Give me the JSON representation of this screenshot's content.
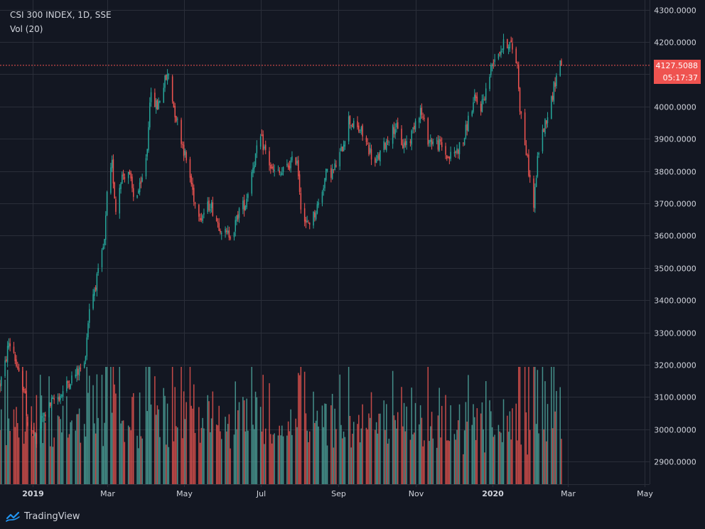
{
  "legend": {
    "title": "CSI 300 INDEX, 1D, SSE",
    "indicator": "Vol (20)"
  },
  "brand": {
    "name": "TradingView",
    "icon": "tradingview-logo-icon"
  },
  "price_line": {
    "price_label": "4127.5088",
    "countdown_label": "05:17:37",
    "value": 4127.5088
  },
  "colors": {
    "background": "#131722",
    "grid": "#2a2e39",
    "up": "#26a69a",
    "down": "#ef5350",
    "up_volume": "#4ea59b",
    "down_volume": "#e5534f",
    "text": "#d1d4dc",
    "price_line": "#ef5350"
  },
  "chart_data": {
    "type": "candlestick",
    "title": "CSI 300 INDEX, 1D, SSE",
    "ylim": [
      2830,
      4330
    ],
    "y_ticks": [
      "4300.0000",
      "4200.0000",
      "4100.0000",
      "4000.0000",
      "3900.0000",
      "3800.0000",
      "3700.0000",
      "3600.0000",
      "3500.0000",
      "3400.0000",
      "3300.0000",
      "3200.0000",
      "3100.0000",
      "3000.0000",
      "2900.0000"
    ],
    "y_tick_values": [
      4300,
      4200,
      4100,
      4000,
      3900,
      3800,
      3700,
      3600,
      3500,
      3400,
      3300,
      3200,
      3100,
      3000,
      2900
    ],
    "x_ticks": [
      "2019",
      "Mar",
      "May",
      "Jul",
      "Sep",
      "Nov",
      "2020",
      "Mar",
      "May"
    ],
    "x_tick_bold": [
      true,
      false,
      false,
      false,
      false,
      false,
      true,
      false,
      false
    ],
    "x_tick_dates": [
      "2019-01-01",
      "2019-03-01",
      "2019-05-01",
      "2019-07-01",
      "2019-09-01",
      "2019-11-01",
      "2020-01-01",
      "2020-03-01",
      "2020-05-01"
    ],
    "x_range": [
      "2018-12-06",
      "2020-05-05"
    ],
    "grid": true,
    "close_path": [
      [
        "2018-12-06",
        3140
      ],
      [
        "2018-12-10",
        3200
      ],
      [
        "2018-12-13",
        3270
      ],
      [
        "2018-12-17",
        3240
      ],
      [
        "2018-12-20",
        3175
      ],
      [
        "2018-12-25",
        3130
      ],
      [
        "2018-12-28",
        3020
      ],
      [
        "2019-01-02",
        2980
      ],
      [
        "2019-01-04",
        2950
      ],
      [
        "2019-01-08",
        3030
      ],
      [
        "2019-01-14",
        3070
      ],
      [
        "2019-01-18",
        3090
      ],
      [
        "2019-01-24",
        3110
      ],
      [
        "2019-01-30",
        3150
      ],
      [
        "2019-02-11",
        3200
      ],
      [
        "2019-02-15",
        3380
      ],
      [
        "2019-02-22",
        3480
      ],
      [
        "2019-02-27",
        3580
      ],
      [
        "2019-03-01",
        3720
      ],
      [
        "2019-03-05",
        3820
      ],
      [
        "2019-03-08",
        3680
      ],
      [
        "2019-03-12",
        3780
      ],
      [
        "2019-03-18",
        3800
      ],
      [
        "2019-03-22",
        3720
      ],
      [
        "2019-03-28",
        3750
      ],
      [
        "2019-04-02",
        3870
      ],
      [
        "2019-04-04",
        4030
      ],
      [
        "2019-04-10",
        4000
      ],
      [
        "2019-04-16",
        4080
      ],
      [
        "2019-04-19",
        4100
      ],
      [
        "2019-04-23",
        4000
      ],
      [
        "2019-04-29",
        3900
      ],
      [
        "2019-05-06",
        3780
      ],
      [
        "2019-05-10",
        3700
      ],
      [
        "2019-05-15",
        3660
      ],
      [
        "2019-05-22",
        3700
      ],
      [
        "2019-05-28",
        3640
      ],
      [
        "2019-06-04",
        3600
      ],
      [
        "2019-06-10",
        3620
      ],
      [
        "2019-06-14",
        3680
      ],
      [
        "2019-06-19",
        3700
      ],
      [
        "2019-06-25",
        3820
      ],
      [
        "2019-07-01",
        3900
      ],
      [
        "2019-07-05",
        3860
      ],
      [
        "2019-07-10",
        3800
      ],
      [
        "2019-07-17",
        3790
      ],
      [
        "2019-07-24",
        3820
      ],
      [
        "2019-07-30",
        3840
      ],
      [
        "2019-08-02",
        3700
      ],
      [
        "2019-08-06",
        3630
      ],
      [
        "2019-08-12",
        3660
      ],
      [
        "2019-08-16",
        3700
      ],
      [
        "2019-08-22",
        3790
      ],
      [
        "2019-08-28",
        3800
      ],
      [
        "2019-09-03",
        3860
      ],
      [
        "2019-09-09",
        3960
      ],
      [
        "2019-09-13",
        3940
      ],
      [
        "2019-09-19",
        3920
      ],
      [
        "2019-09-25",
        3870
      ],
      [
        "2019-09-30",
        3820
      ],
      [
        "2019-10-10",
        3900
      ],
      [
        "2019-10-16",
        3940
      ],
      [
        "2019-10-22",
        3880
      ],
      [
        "2019-10-28",
        3900
      ],
      [
        "2019-11-01",
        3960
      ],
      [
        "2019-11-05",
        3990
      ],
      [
        "2019-11-11",
        3900
      ],
      [
        "2019-11-15",
        3890
      ],
      [
        "2019-11-21",
        3880
      ],
      [
        "2019-11-27",
        3840
      ],
      [
        "2019-12-03",
        3860
      ],
      [
        "2019-12-09",
        3890
      ],
      [
        "2019-12-13",
        3960
      ],
      [
        "2019-12-18",
        4020
      ],
      [
        "2019-12-23",
        4000
      ],
      [
        "2019-12-27",
        4050
      ],
      [
        "2020-01-02",
        4150
      ],
      [
        "2020-01-06",
        4170
      ],
      [
        "2020-01-10",
        4190
      ],
      [
        "2020-01-14",
        4200
      ],
      [
        "2020-01-17",
        4180
      ],
      [
        "2020-01-21",
        4130
      ],
      [
        "2020-01-23",
        4000
      ],
      [
        "2020-02-03",
        3690
      ],
      [
        "2020-02-05",
        3790
      ],
      [
        "2020-02-07",
        3870
      ],
      [
        "2020-02-12",
        3950
      ],
      [
        "2020-02-17",
        4020
      ],
      [
        "2020-02-20",
        4080
      ],
      [
        "2020-02-24",
        4140
      ],
      [
        "2020-02-25",
        4127.5088
      ]
    ],
    "series": [
      {
        "name": "CSI 300 INDEX",
        "last": 4127.5088
      },
      {
        "name": "Vol (20)"
      }
    ]
  }
}
